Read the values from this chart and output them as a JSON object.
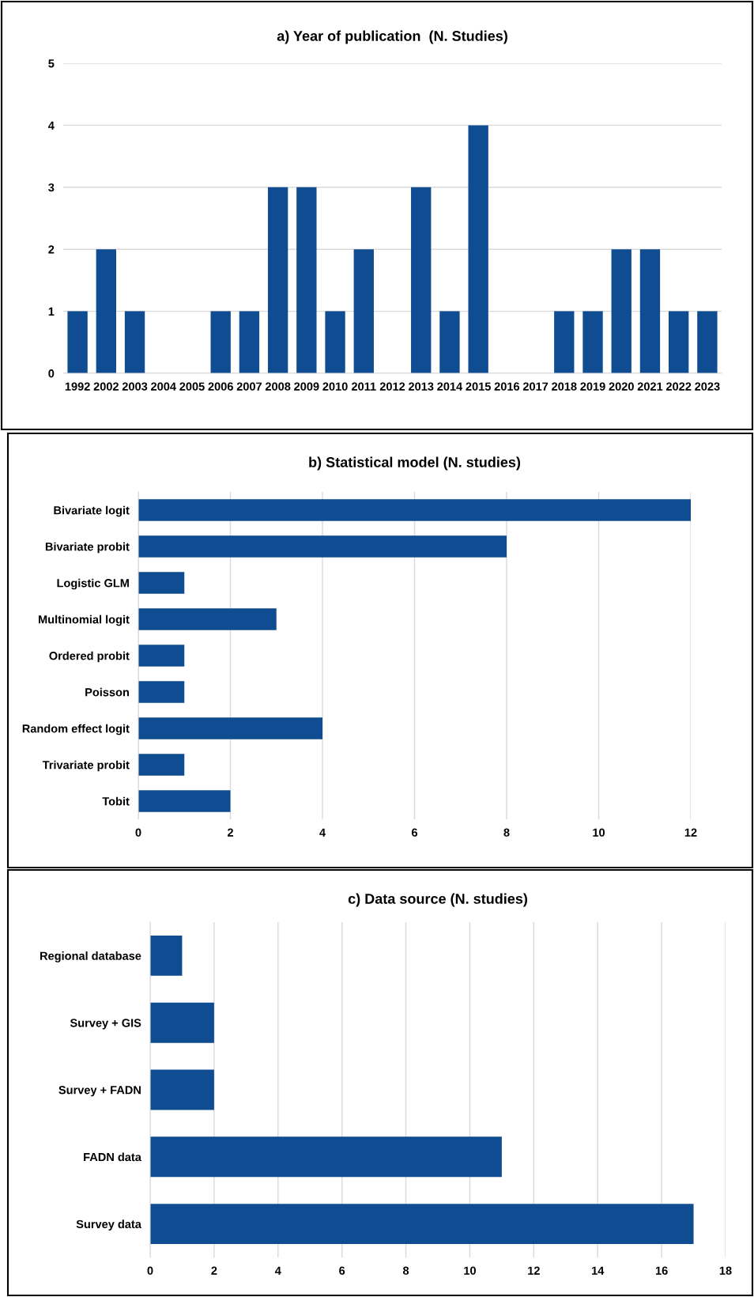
{
  "chart_data": [
    {
      "type": "bar",
      "title": "a) Year of publication  (N. Studies)",
      "categories": [
        "1992",
        "2002",
        "2003",
        "2004",
        "2005",
        "2006",
        "2007",
        "2008",
        "2009",
        "2010",
        "2011",
        "2012",
        "2013",
        "2014",
        "2015",
        "2016",
        "2017",
        "2018",
        "2019",
        "2020",
        "2021",
        "2022",
        "2023"
      ],
      "values": [
        1,
        2,
        1,
        0,
        0,
        1,
        1,
        3,
        3,
        1,
        2,
        0,
        3,
        1,
        4,
        0,
        0,
        1,
        1,
        2,
        2,
        1,
        1
      ],
      "color": "#0f4c92",
      "ylim": [
        0,
        5
      ],
      "yticks": [
        0,
        1,
        2,
        3,
        4,
        5
      ],
      "grid": "y"
    },
    {
      "type": "bar",
      "orientation": "horizontal",
      "title": "b) Statistical model (N. studies)",
      "categories": [
        "Bivariate logit",
        "Bivariate probit",
        "Logistic GLM",
        "Multinomial logit",
        "Ordered probit",
        "Poisson",
        "Random effect logit",
        "Trivariate probit",
        "Tobit"
      ],
      "values": [
        12,
        8,
        1,
        3,
        1,
        1,
        4,
        1,
        2
      ],
      "color": "#0f4c92",
      "xlim": [
        0,
        12
      ],
      "xticks": [
        0,
        2,
        4,
        6,
        8,
        10,
        12
      ],
      "grid": "x"
    },
    {
      "type": "bar",
      "orientation": "horizontal",
      "title": "c) Data source (N. studies)",
      "categories": [
        "Regional database",
        "Survey + GIS",
        "Survey + FADN",
        "FADN data",
        "Survey data"
      ],
      "values": [
        1,
        2,
        2,
        11,
        17
      ],
      "color": "#0f4c92",
      "xlim": [
        0,
        18
      ],
      "xticks": [
        0,
        2,
        4,
        6,
        8,
        10,
        12,
        14,
        16,
        18
      ],
      "grid": "x"
    }
  ]
}
